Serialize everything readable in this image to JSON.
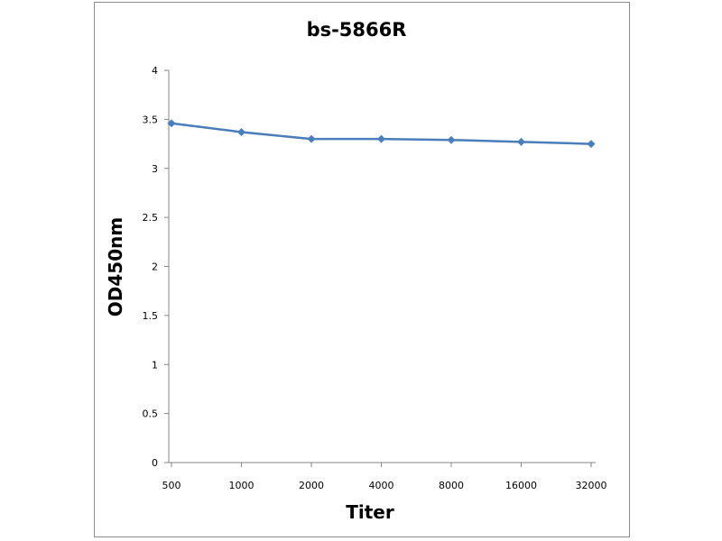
{
  "chart_data": {
    "type": "line",
    "title": "bs-5866R",
    "xlabel": "Titer",
    "ylabel": "OD450nm",
    "categories": [
      "500",
      "1000",
      "2000",
      "4000",
      "8000",
      "16000",
      "32000"
    ],
    "series": [
      {
        "values": [
          3.46,
          3.37,
          3.3,
          3.3,
          3.29,
          3.27,
          3.25
        ]
      }
    ],
    "ylim": [
      0,
      4
    ],
    "yticks": [
      "0",
      "0.5",
      "1",
      "1.5",
      "2",
      "2.5",
      "3",
      "3.5",
      "4"
    ],
    "grid": false,
    "legend": "none",
    "colors": {
      "line": "#4a7ebb",
      "axis": "#868686",
      "frame": "#8c8c8c"
    }
  }
}
